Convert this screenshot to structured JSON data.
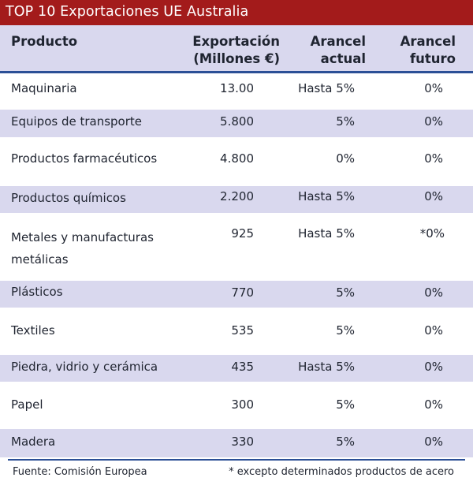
{
  "title": "TOP 10 Exportaciones UE Australia",
  "colors": {
    "title_bg": "#a31b1b",
    "row_shade": "#d9d8ee",
    "rule": "#2b4f96"
  },
  "headers": {
    "product": "Producto",
    "export_line1": "Exportación",
    "export_line2": "(Millones €)",
    "current_line1": "Arancel",
    "current_line2": "actual",
    "future_line1": "Arancel",
    "future_line2": "futuro"
  },
  "rows": [
    {
      "product": "Maquinaria",
      "export": "13.00",
      "current": "Hasta 5%",
      "future": "0%"
    },
    {
      "product": "Equipos de transporte",
      "export": "5.800",
      "current": "5%",
      "future": "0%"
    },
    {
      "product": "Productos farmacéuticos",
      "export": "4.800",
      "current": "0%",
      "future": "0%"
    },
    {
      "product": "Productos químicos",
      "export": "2.200",
      "current": "Hasta 5%",
      "future": "0%"
    },
    {
      "product": "Metales y manufacturas metálicas",
      "export": "925",
      "current": "Hasta 5%",
      "future": "*0%"
    },
    {
      "product": "Plásticos",
      "export": "770",
      "current": "5%",
      "future": "0%"
    },
    {
      "product": "Textiles",
      "export": "535",
      "current": "5%",
      "future": "0%"
    },
    {
      "product": "Piedra, vidrio y cerámica",
      "export": "435",
      "current": "Hasta 5%",
      "future": "0%"
    },
    {
      "product": "Papel",
      "export": "300",
      "current": "5%",
      "future": "0%"
    },
    {
      "product": "Madera",
      "export": "330",
      "current": "5%",
      "future": "0%"
    }
  ],
  "footer": {
    "source": "Fuente: Comisión Europea",
    "note": "*  excepto determinados productos de acero"
  }
}
